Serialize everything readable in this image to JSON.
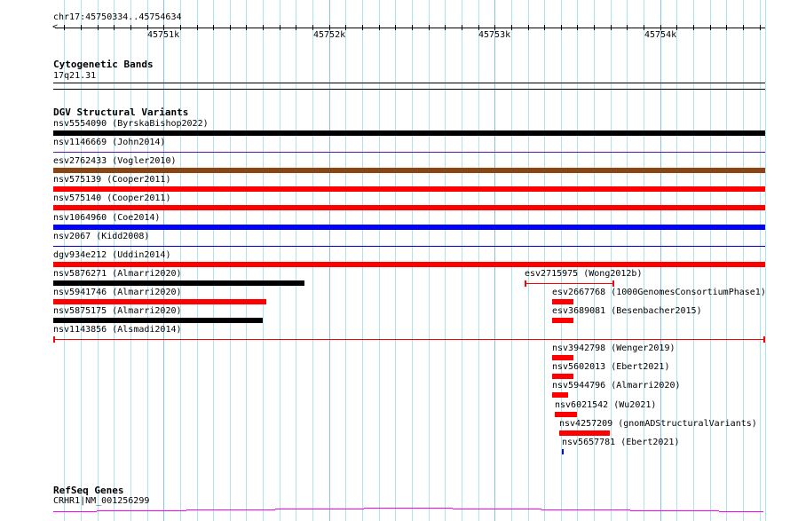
{
  "ruler": {
    "location": "chr17:45750334..45754634",
    "view_start": 45750334,
    "view_end": 45754634,
    "major_labels": [
      {
        "pos": 45751000,
        "label": "45751k"
      },
      {
        "pos": 45752000,
        "label": "45752k"
      },
      {
        "pos": 45753000,
        "label": "45753k"
      },
      {
        "pos": 45754000,
        "label": "45754k"
      }
    ]
  },
  "cytobands": {
    "title": "Cytogenetic Bands",
    "band": "17q21.31"
  },
  "dgv": {
    "title": "DGV Structural Variants",
    "features": [
      {
        "id": "nsv5554090",
        "source": "(ByrskaBishop2022)",
        "start": 45750000,
        "end": 45755000,
        "style": "thick",
        "color": "#000000"
      },
      {
        "id": "nsv1146669",
        "source": "(John2014)",
        "start": 45750000,
        "end": 45755000,
        "style": "thin",
        "color": "#5a1aa0"
      },
      {
        "id": "esv2762433",
        "source": "(Vogler2010)",
        "start": 45750000,
        "end": 45755000,
        "style": "thick",
        "color": "#8b4513"
      },
      {
        "id": "nsv575139",
        "source": "(Cooper2011)",
        "start": 45750000,
        "end": 45755000,
        "style": "thick",
        "color": "#ff0000"
      },
      {
        "id": "nsv575140",
        "source": "(Cooper2011)",
        "start": 45750000,
        "end": 45755000,
        "style": "thick",
        "color": "#ff0000"
      },
      {
        "id": "nsv1064960",
        "source": "(Coe2014)",
        "start": 45750000,
        "end": 45755000,
        "style": "thick",
        "color": "#0000ff"
      },
      {
        "id": "nsv2067",
        "source": "(Kidd2008)",
        "start": 45750000,
        "end": 45755000,
        "style": "thin",
        "color": "#0000cc"
      },
      {
        "id": "dgv934e212",
        "source": "(Uddin2014)",
        "start": 45750000,
        "end": 45755000,
        "style": "thick",
        "color": "#ff0000"
      },
      {
        "id": "nsv5876271",
        "source": "(Almarri2020)",
        "start": 45750334,
        "end": 45751851,
        "style": "thick",
        "color": "#000000"
      },
      {
        "id": "nsv5941746",
        "source": "(Almarri2020)",
        "start": 45750334,
        "end": 45751621,
        "style": "thick",
        "color": "#ff0000"
      },
      {
        "id": "nsv5875175",
        "source": "(Almarri2020)",
        "start": 45750334,
        "end": 45751599,
        "style": "thick",
        "color": "#000000"
      },
      {
        "id": "nsv1143856",
        "source": "(Alsmadi2014)",
        "start": 45750334,
        "end": 45754634,
        "style": "capped",
        "color": "#ff0000"
      },
      {
        "id": "esv2715975",
        "source": "(Wong2012b)",
        "start": 45753181,
        "end": 45753723,
        "style": "capped",
        "color": "#ff0000"
      },
      {
        "id": "esv2667768",
        "source": "(1000GenomesConsortiumPhase1)",
        "start": 45753347,
        "end": 45753476,
        "style": "thick",
        "color": "#ff0000"
      },
      {
        "id": "esv3689081",
        "source": "(Besenbacher2015)",
        "start": 45753347,
        "end": 45753476,
        "style": "thick",
        "color": "#ff0000"
      },
      {
        "id": "nsv3942798",
        "source": "(Wenger2019)",
        "start": 45753347,
        "end": 45753476,
        "style": "thick",
        "color": "#ff0000"
      },
      {
        "id": "nsv5602013",
        "source": "(Ebert2021)",
        "start": 45753347,
        "end": 45753476,
        "style": "thick",
        "color": "#ff0000"
      },
      {
        "id": "nsv5944796",
        "source": "(Almarri2020)",
        "start": 45753347,
        "end": 45753444,
        "style": "thick",
        "color": "#ff0000"
      },
      {
        "id": "nsv6021542",
        "source": "(Wu2021)",
        "start": 45753363,
        "end": 45753497,
        "style": "thick",
        "color": "#ff0000"
      },
      {
        "id": "nsv4257209",
        "source": "(gnomADStructuralVariants)",
        "start": 45753390,
        "end": 45753696,
        "style": "thick",
        "color": "#ff0000"
      },
      {
        "id": "nsv5657781",
        "source": "(Ebert2021)",
        "start": 45753406,
        "end": 45753417,
        "style": "thick",
        "color": "#0000ff"
      }
    ]
  },
  "refseq": {
    "title": "RefSeq Genes",
    "gene": "CRHR1|NM_001256299",
    "color": "#ff00ff"
  }
}
